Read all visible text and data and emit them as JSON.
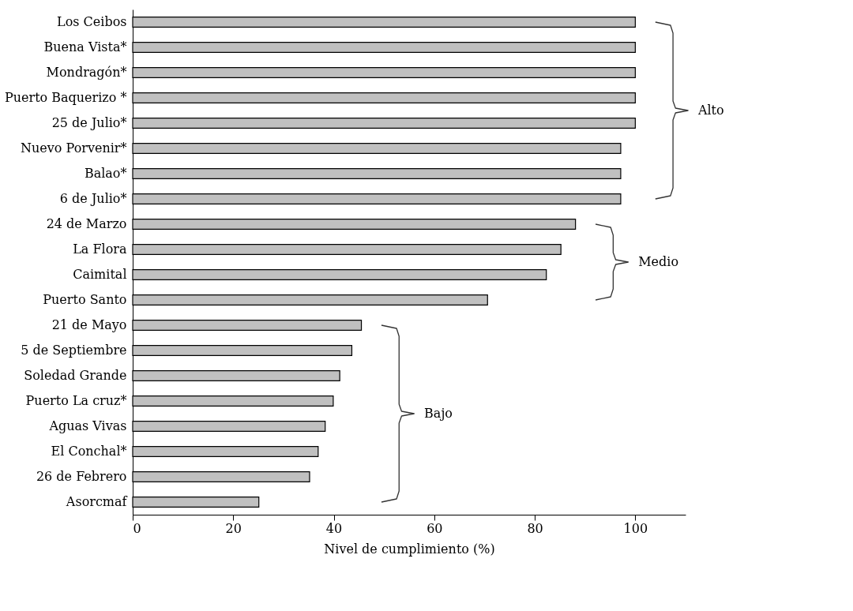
{
  "chart_data": {
    "type": "bar",
    "orientation": "horizontal",
    "xlabel": "Nivel de cumplimiento (%)",
    "categories": [
      "Los Ceibos",
      "Buena Vista*",
      "Mondragón*",
      "Puerto Baquerizo *",
      "25 de Julio*",
      "Nuevo Porvenir*",
      "Balao*",
      "6 de Julio*",
      "24 de Marzo",
      "La Flora",
      "Caimital",
      "Puerto Santo",
      "21 de Mayo",
      "5 de Septiembre",
      "Soledad Grande",
      "Puerto La cruz*",
      "Aguas Vivas",
      "El Conchal*",
      "26 de Febrero",
      "Asorcmaf"
    ],
    "values": [
      100,
      100,
      100,
      100,
      100,
      97.1,
      97.1,
      97.1,
      88.1,
      85.2,
      82.3,
      70.6,
      45.5,
      43.6,
      41.2,
      39.9,
      38.3,
      36.9,
      35.2,
      25.1
    ],
    "color": "#c0c0c0",
    "xlim": [
      0,
      110
    ],
    "xticks": [
      0,
      20,
      40,
      60,
      80,
      100
    ],
    "grid": false,
    "annotations": [
      "Alto",
      "Medio",
      "Bajo"
    ]
  }
}
